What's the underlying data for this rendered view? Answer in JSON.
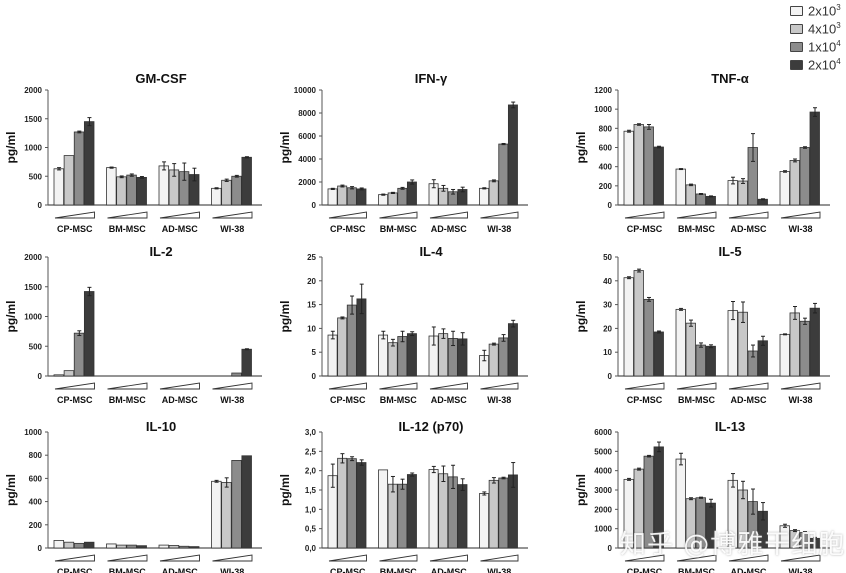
{
  "legend": {
    "title": "",
    "placement": "top-right",
    "items": [
      {
        "base": "2x10",
        "exp": "3",
        "color": "#f3f3f3"
      },
      {
        "base": "4x10",
        "exp": "3",
        "color": "#c8c8c8"
      },
      {
        "base": "1x10",
        "exp": "4",
        "color": "#8c8c8c"
      },
      {
        "base": "2x10",
        "exp": "4",
        "color": "#3c3c3c"
      }
    ]
  },
  "watermark": "知乎 @博雅干细胞",
  "chart_data": [
    {
      "type": "bar",
      "title": "GM-CSF",
      "ylabel": "pg/ml",
      "xlabel": "",
      "ylim": [
        0,
        2000
      ],
      "yticks": [
        "0",
        "500",
        "1000",
        "1500",
        "2000"
      ],
      "categories": [
        "CP-MSC",
        "BM-MSC",
        "AD-MSC",
        "WI-38"
      ],
      "series": [
        {
          "name": "2x10^3",
          "values": [
            630,
            650,
            680,
            290
          ],
          "errors": [
            20,
            10,
            70,
            10
          ]
        },
        {
          "name": "4x10^3",
          "values": [
            860,
            490,
            610,
            430
          ],
          "errors": [
            0,
            15,
            110,
            20
          ]
        },
        {
          "name": "1x10^4",
          "values": [
            1270,
            520,
            580,
            500
          ],
          "errors": [
            15,
            20,
            150,
            15
          ]
        },
        {
          "name": "2x10^4",
          "values": [
            1450,
            480,
            530,
            830
          ],
          "errors": [
            70,
            15,
            110,
            10
          ]
        }
      ]
    },
    {
      "type": "bar",
      "title": "IFN-γ",
      "ylabel": "pg/ml",
      "xlabel": "",
      "ylim": [
        0,
        10000
      ],
      "yticks": [
        "0",
        "2000",
        "4000",
        "6000",
        "8000",
        "10000"
      ],
      "categories": [
        "CP-MSC",
        "BM-MSC",
        "AD-MSC",
        "WI-38"
      ],
      "series": [
        {
          "name": "2x10^3",
          "values": [
            1400,
            900,
            1850,
            1450
          ],
          "errors": [
            50,
            50,
            350,
            50
          ]
        },
        {
          "name": "4x10^3",
          "values": [
            1650,
            1050,
            1450,
            2100
          ],
          "errors": [
            80,
            50,
            250,
            80
          ]
        },
        {
          "name": "1x10^4",
          "values": [
            1500,
            1450,
            1150,
            5300
          ],
          "errors": [
            100,
            80,
            200,
            50
          ]
        },
        {
          "name": "2x10^4",
          "values": [
            1400,
            2000,
            1350,
            8700
          ],
          "errors": [
            80,
            180,
            200,
            250
          ]
        }
      ]
    },
    {
      "type": "bar",
      "title": "TNF-α",
      "ylabel": "pg/ml",
      "xlabel": "",
      "ylim": [
        0,
        1200
      ],
      "yticks": [
        "0",
        "200",
        "400",
        "600",
        "800",
        "1000",
        "1200"
      ],
      "categories": [
        "CP-MSC",
        "BM-MSC",
        "AD-MSC",
        "WI-38"
      ],
      "series": [
        {
          "name": "2x10^3",
          "values": [
            770,
            375,
            255,
            350
          ],
          "errors": [
            10,
            5,
            35,
            8
          ]
        },
        {
          "name": "4x10^3",
          "values": [
            840,
            210,
            250,
            465
          ],
          "errors": [
            8,
            8,
            25,
            15
          ]
        },
        {
          "name": "1x10^4",
          "values": [
            815,
            115,
            600,
            600
          ],
          "errors": [
            25,
            5,
            145,
            8
          ]
        },
        {
          "name": "2x10^4",
          "values": [
            605,
            90,
            60,
            970
          ],
          "errors": [
            8,
            5,
            5,
            45
          ]
        }
      ]
    },
    {
      "type": "bar",
      "title": "IL-2",
      "ylabel": "pg/ml",
      "xlabel": "",
      "ylim": [
        0,
        2000
      ],
      "yticks": [
        "0",
        "500",
        "1000",
        "1500",
        "2000"
      ],
      "categories": [
        "CP-MSC",
        "BM-MSC",
        "AD-MSC",
        "WI-38"
      ],
      "series": [
        {
          "name": "2x10^3",
          "values": [
            20,
            0,
            0,
            0
          ],
          "errors": [
            0,
            0,
            0,
            0
          ]
        },
        {
          "name": "4x10^3",
          "values": [
            90,
            0,
            0,
            0
          ],
          "errors": [
            0,
            0,
            0,
            0
          ]
        },
        {
          "name": "1x10^4",
          "values": [
            720,
            0,
            0,
            50
          ],
          "errors": [
            40,
            0,
            0,
            0
          ]
        },
        {
          "name": "2x10^4",
          "values": [
            1420,
            0,
            0,
            450
          ],
          "errors": [
            70,
            0,
            0,
            8
          ]
        }
      ]
    },
    {
      "type": "bar",
      "title": "IL-4",
      "ylabel": "pg/ml",
      "xlabel": "",
      "ylim": [
        0,
        25
      ],
      "yticks": [
        "0",
        "5",
        "10",
        "15",
        "20",
        "25"
      ],
      "categories": [
        "CP-MSC",
        "BM-MSC",
        "AD-MSC",
        "WI-38"
      ],
      "series": [
        {
          "name": "2x10^3",
          "values": [
            8.6,
            8.6,
            8.4,
            4.3
          ],
          "errors": [
            0.8,
            0.8,
            1.9,
            1.1
          ]
        },
        {
          "name": "4x10^3",
          "values": [
            12.2,
            7.0,
            8.9,
            6.7
          ],
          "errors": [
            0.2,
            0.7,
            1.0,
            0.2
          ]
        },
        {
          "name": "1x10^4",
          "values": [
            14.9,
            8.3,
            7.9,
            8.0
          ],
          "errors": [
            1.9,
            1.1,
            1.5,
            0.7
          ]
        },
        {
          "name": "2x10^4",
          "values": [
            16.2,
            8.9,
            7.8,
            11.0
          ],
          "errors": [
            3.1,
            0.4,
            1.3,
            0.7
          ]
        }
      ]
    },
    {
      "type": "bar",
      "title": "IL-5",
      "ylabel": "pg/ml",
      "xlabel": "",
      "ylim": [
        0,
        50
      ],
      "yticks": [
        "0",
        "10",
        "20",
        "30",
        "40",
        "50"
      ],
      "categories": [
        "CP-MSC",
        "BM-MSC",
        "AD-MSC",
        "WI-38"
      ],
      "series": [
        {
          "name": "2x10^3",
          "values": [
            41.3,
            28.0,
            27.5,
            17.5
          ],
          "errors": [
            0.4,
            0.4,
            3.8,
            0.2
          ]
        },
        {
          "name": "4x10^3",
          "values": [
            44.3,
            22.2,
            26.8,
            26.5
          ],
          "errors": [
            0.6,
            1.3,
            4.3,
            2.7
          ]
        },
        {
          "name": "1x10^4",
          "values": [
            32.2,
            13.0,
            10.5,
            23.0
          ],
          "errors": [
            0.8,
            0.9,
            2.5,
            1.3
          ]
        },
        {
          "name": "2x10^4",
          "values": [
            18.5,
            12.5,
            14.8,
            28.5
          ],
          "errors": [
            0.4,
            0.6,
            1.9,
            2.0
          ]
        }
      ]
    },
    {
      "type": "bar",
      "title": "IL-10",
      "ylabel": "pg/ml",
      "xlabel": "",
      "ylim": [
        0,
        1000
      ],
      "yticks": [
        "0",
        "200",
        "400",
        "600",
        "800",
        "1000"
      ],
      "categories": [
        "CP-MSC",
        "BM-MSC",
        "AD-MSC",
        "WI-38"
      ],
      "series": [
        {
          "name": "2x10^3",
          "values": [
            65,
            35,
            25,
            575
          ],
          "errors": [
            0,
            0,
            0,
            8
          ]
        },
        {
          "name": "4x10^3",
          "values": [
            50,
            25,
            22,
            565
          ],
          "errors": [
            0,
            0,
            0,
            40
          ]
        },
        {
          "name": "1x10^4",
          "values": [
            40,
            25,
            15,
            755
          ],
          "errors": [
            0,
            0,
            0,
            0
          ]
        },
        {
          "name": "2x10^4",
          "values": [
            50,
            20,
            12,
            795
          ],
          "errors": [
            0,
            0,
            0,
            0
          ]
        }
      ]
    },
    {
      "type": "bar",
      "title": "IL-12 (p70)",
      "ylabel": "pg/ml",
      "xlabel": "",
      "ylim": [
        0,
        3.0
      ],
      "yticks": [
        "0,0",
        "0,5",
        "1,0",
        "1,5",
        "2,0",
        "2,5",
        "3,0"
      ],
      "categories": [
        "CP-MSC",
        "BM-MSC",
        "AD-MSC",
        "WI-38"
      ],
      "series": [
        {
          "name": "2x10^3",
          "values": [
            1.87,
            2.02,
            2.03,
            1.41
          ],
          "errors": [
            0.3,
            0,
            0.08,
            0.04
          ]
        },
        {
          "name": "4x10^3",
          "values": [
            2.32,
            1.65,
            1.92,
            1.75
          ],
          "errors": [
            0.12,
            0.2,
            0.2,
            0.07
          ]
        },
        {
          "name": "1x10^4",
          "values": [
            2.31,
            1.65,
            1.84,
            1.81
          ],
          "errors": [
            0.05,
            0.13,
            0.3,
            0.02
          ]
        },
        {
          "name": "2x10^4",
          "values": [
            2.21,
            1.9,
            1.64,
            1.89
          ],
          "errors": [
            0.07,
            0.04,
            0.15,
            0.32
          ]
        }
      ]
    },
    {
      "type": "bar",
      "title": "IL-13",
      "ylabel": "pg/ml",
      "xlabel": "",
      "ylim": [
        0,
        6000
      ],
      "yticks": [
        "0",
        "1000",
        "2000",
        "3000",
        "4000",
        "5000",
        "6000"
      ],
      "categories": [
        "CP-MSC",
        "BM-MSC",
        "AD-MSC",
        "WI-38"
      ],
      "series": [
        {
          "name": "2x10^3",
          "values": [
            3550,
            4600,
            3500,
            1150
          ],
          "errors": [
            50,
            300,
            350,
            80
          ]
        },
        {
          "name": "4x10^3",
          "values": [
            4080,
            2550,
            3000,
            900
          ],
          "errors": [
            50,
            50,
            450,
            50
          ]
        },
        {
          "name": "1x10^4",
          "values": [
            4750,
            2600,
            2400,
            800
          ],
          "errors": [
            40,
            30,
            650,
            50
          ]
        },
        {
          "name": "2x10^4",
          "values": [
            5230,
            2320,
            1900,
            500
          ],
          "errors": [
            250,
            200,
            450,
            50
          ]
        }
      ]
    }
  ]
}
